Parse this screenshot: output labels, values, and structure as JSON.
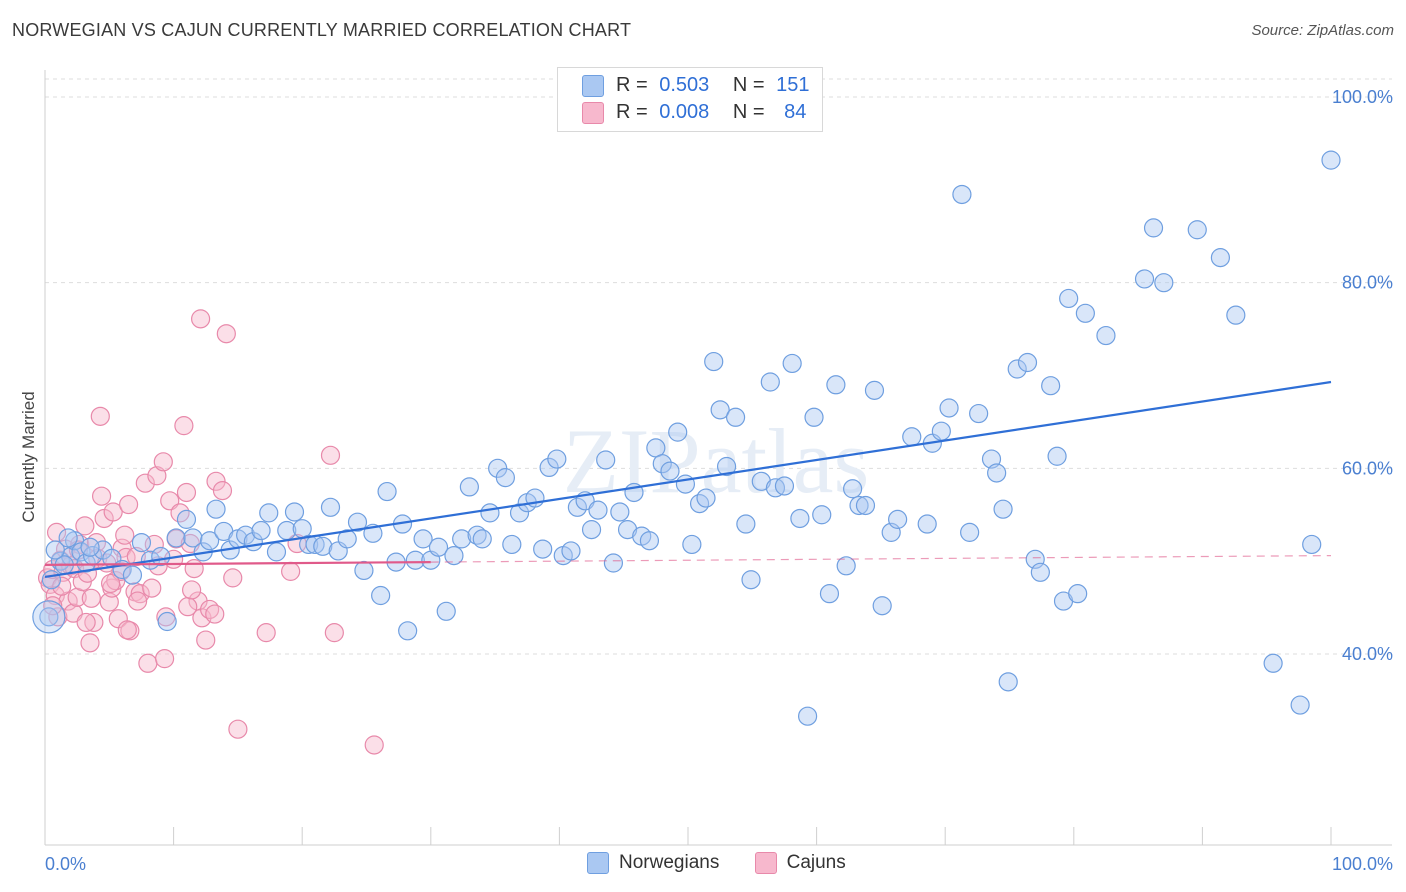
{
  "title": "NORWEGIAN VS CAJUN CURRENTLY MARRIED CORRELATION CHART",
  "source": "Source: ZipAtlas.com",
  "watermark": "ZIPatlas",
  "colors": {
    "norwegians_fill": "#aac8f2",
    "norwegians_stroke": "#6f9fe0",
    "norwegians_line": "#2f6fd6",
    "cajuns_fill": "#f7b8cd",
    "cajuns_stroke": "#e889aa",
    "cajuns_line": "#e05a8a",
    "tick_label": "#4a7fd0"
  },
  "legend": {
    "rows": [
      {
        "r_label": "R =",
        "r_value": "0.503",
        "n_label": "N =",
        "n_value": "151",
        "color": "#aac8f2"
      },
      {
        "r_label": "R =",
        "r_value": "0.008",
        "n_label": "N =",
        "n_value": "84",
        "color": "#f7b8cd"
      }
    ]
  },
  "bottom_legend": [
    {
      "label": "Norwegians",
      "color": "#aac8f2"
    },
    {
      "label": "Cajuns",
      "color": "#f7b8cd"
    }
  ],
  "chart_data": {
    "type": "scatter",
    "title": "NORWEGIAN VS CAJUN CURRENTLY MARRIED CORRELATION CHART",
    "xlabel": "",
    "ylabel": "Currently Married",
    "xlim": [
      0,
      100
    ],
    "ylim": [
      22,
      102
    ],
    "x_tick_labels": [
      "0.0%",
      "100.0%"
    ],
    "y_ticks": [
      40,
      60,
      80,
      100
    ],
    "y_tick_labels": [
      "40.0%",
      "60.0%",
      "80.0%",
      "100.0%"
    ],
    "grid": "horizontal dashed",
    "legend_position": "top-center",
    "series": [
      {
        "name": "Norwegians",
        "r": 0.503,
        "n": 151,
        "trend": {
          "x": [
            0,
            100
          ],
          "y": [
            48.3,
            69.3
          ]
        },
        "points": [
          [
            1.2,
            50
          ],
          [
            2,
            50.5
          ],
          [
            2.3,
            52.2
          ],
          [
            2.8,
            51
          ],
          [
            3.2,
            49.8
          ],
          [
            3.7,
            50.6
          ],
          [
            4.5,
            51.2
          ],
          [
            5.2,
            50.3
          ],
          [
            6,
            49.1
          ],
          [
            6.8,
            48.5
          ],
          [
            7.5,
            52
          ],
          [
            8.2,
            50.1
          ],
          [
            9,
            50.5
          ],
          [
            9.5,
            43.5
          ],
          [
            10.2,
            52.5
          ],
          [
            11,
            54.5
          ],
          [
            11.5,
            52.5
          ],
          [
            12.3,
            51
          ],
          [
            12.8,
            52.2
          ],
          [
            13.3,
            55.6
          ],
          [
            13.9,
            53.2
          ],
          [
            14.4,
            51.2
          ],
          [
            15,
            52.4
          ],
          [
            15.6,
            52.8
          ],
          [
            16.2,
            52.1
          ],
          [
            16.8,
            53.3
          ],
          [
            17.4,
            55.2
          ],
          [
            18,
            51
          ],
          [
            18.8,
            53.3
          ],
          [
            19.4,
            55.3
          ],
          [
            20,
            53.5
          ],
          [
            20.5,
            51.8
          ],
          [
            21,
            51.8
          ],
          [
            21.6,
            51.6
          ],
          [
            22.2,
            55.8
          ],
          [
            22.8,
            51.1
          ],
          [
            23.5,
            52.4
          ],
          [
            24.3,
            54.2
          ],
          [
            24.8,
            49
          ],
          [
            25.5,
            53
          ],
          [
            26.1,
            46.3
          ],
          [
            26.6,
            57.5
          ],
          [
            27.3,
            49.9
          ],
          [
            27.8,
            54
          ],
          [
            28.2,
            42.5
          ],
          [
            28.8,
            50.1
          ],
          [
            29.4,
            52.4
          ],
          [
            30,
            50.1
          ],
          [
            30.6,
            51.5
          ],
          [
            31.2,
            44.6
          ],
          [
            31.8,
            50.6
          ],
          [
            32.4,
            52.4
          ],
          [
            33,
            58
          ],
          [
            33.6,
            52.8
          ],
          [
            34,
            52.4
          ],
          [
            34.6,
            55.2
          ],
          [
            35.2,
            60
          ],
          [
            35.8,
            59
          ],
          [
            36.3,
            51.8
          ],
          [
            36.9,
            55.2
          ],
          [
            37.5,
            56.3
          ],
          [
            38.1,
            56.8
          ],
          [
            38.7,
            51.3
          ],
          [
            39.2,
            60.1
          ],
          [
            39.8,
            61
          ],
          [
            40.3,
            50.6
          ],
          [
            40.9,
            51.1
          ],
          [
            41.4,
            55.8
          ],
          [
            42,
            56.5
          ],
          [
            42.5,
            53.4
          ],
          [
            43,
            55.5
          ],
          [
            43.6,
            60.9
          ],
          [
            44.2,
            49.8
          ],
          [
            44.7,
            55.3
          ],
          [
            45.3,
            53.4
          ],
          [
            45.8,
            57.4
          ],
          [
            46.4,
            52.7
          ],
          [
            47,
            52.2
          ],
          [
            47.5,
            62.2
          ],
          [
            48,
            60.5
          ],
          [
            48.6,
            59.7
          ],
          [
            49.2,
            63.9
          ],
          [
            49.8,
            58.3
          ],
          [
            50.3,
            51.8
          ],
          [
            50.9,
            56.2
          ],
          [
            51.4,
            56.8
          ],
          [
            52,
            71.5
          ],
          [
            52.5,
            66.3
          ],
          [
            53,
            60.2
          ],
          [
            53.7,
            65.5
          ],
          [
            54.5,
            54
          ],
          [
            54.9,
            48
          ],
          [
            55.7,
            58.6
          ],
          [
            56.4,
            69.3
          ],
          [
            56.8,
            57.9
          ],
          [
            57.5,
            58.1
          ],
          [
            58.1,
            71.3
          ],
          [
            58.7,
            54.6
          ],
          [
            59.3,
            33.3
          ],
          [
            59.8,
            65.5
          ],
          [
            60.4,
            55
          ],
          [
            61,
            46.5
          ],
          [
            61.5,
            69
          ],
          [
            62.3,
            49.5
          ],
          [
            62.8,
            57.8
          ],
          [
            63.3,
            56
          ],
          [
            63.8,
            56
          ],
          [
            64.5,
            68.4
          ],
          [
            65.1,
            45.2
          ],
          [
            65.8,
            53.1
          ],
          [
            66.3,
            54.5
          ],
          [
            67.4,
            63.4
          ],
          [
            68.6,
            54
          ],
          [
            69,
            62.7
          ],
          [
            69.7,
            64
          ],
          [
            70.3,
            66.5
          ],
          [
            71.3,
            89.5
          ],
          [
            71.9,
            53.1
          ],
          [
            72.6,
            65.9
          ],
          [
            73.6,
            61
          ],
          [
            74,
            59.5
          ],
          [
            74.5,
            55.6
          ],
          [
            74.9,
            37
          ],
          [
            75.6,
            70.7
          ],
          [
            76.4,
            71.4
          ],
          [
            77,
            50.2
          ],
          [
            77.4,
            48.8
          ],
          [
            78.2,
            68.9
          ],
          [
            78.7,
            61.3
          ],
          [
            79.2,
            45.7
          ],
          [
            79.6,
            78.3
          ],
          [
            80.3,
            46.5
          ],
          [
            80.9,
            76.7
          ],
          [
            82.5,
            74.3
          ],
          [
            85.5,
            80.4
          ],
          [
            86.2,
            85.9
          ],
          [
            87,
            80
          ],
          [
            89.6,
            85.7
          ],
          [
            91.4,
            82.7
          ],
          [
            92.6,
            76.5
          ],
          [
            95.5,
            39
          ],
          [
            97.6,
            34.5
          ],
          [
            98.5,
            51.8
          ],
          [
            100,
            93.2
          ],
          [
            0.3,
            44
          ],
          [
            0.5,
            48
          ],
          [
            1.5,
            49.6
          ],
          [
            0.8,
            51.2
          ],
          [
            1.8,
            52.5
          ],
          [
            3.5,
            51.5
          ]
        ]
      },
      {
        "name": "Cajuns",
        "r": 0.008,
        "n": 84,
        "trend": {
          "x": [
            0,
            30
          ],
          "y": [
            49.6,
            49.9
          ]
        },
        "trend_extended": {
          "x": [
            30,
            100
          ],
          "y": [
            49.9,
            50.6
          ]
        },
        "points": [
          [
            0.2,
            48.2
          ],
          [
            0.4,
            47.5
          ],
          [
            0.6,
            49.1
          ],
          [
            0.8,
            46.3
          ],
          [
            1,
            44
          ],
          [
            1.2,
            50.1
          ],
          [
            1.4,
            48.8
          ],
          [
            1.6,
            51.3
          ],
          [
            1.8,
            45.7
          ],
          [
            2,
            49.5
          ],
          [
            2.2,
            44.4
          ],
          [
            2.3,
            49.2
          ],
          [
            2.5,
            46.1
          ],
          [
            2.7,
            51.8
          ],
          [
            2.9,
            47.8
          ],
          [
            3.1,
            53.8
          ],
          [
            3.3,
            48.7
          ],
          [
            3.5,
            41.2
          ],
          [
            3.6,
            46
          ],
          [
            3.8,
            43.4
          ],
          [
            4,
            52
          ],
          [
            4.1,
            50.3
          ],
          [
            4.3,
            65.6
          ],
          [
            4.4,
            57
          ],
          [
            4.6,
            54.6
          ],
          [
            4.8,
            49.8
          ],
          [
            5,
            45.6
          ],
          [
            5.2,
            47.1
          ],
          [
            5.3,
            55.3
          ],
          [
            5.5,
            47.9
          ],
          [
            5.7,
            43.8
          ],
          [
            5.9,
            48.9
          ],
          [
            6,
            51.4
          ],
          [
            6.2,
            52.8
          ],
          [
            6.3,
            50.4
          ],
          [
            6.5,
            56.1
          ],
          [
            6.6,
            42.5
          ],
          [
            7,
            46.7
          ],
          [
            7.1,
            50.5
          ],
          [
            7.4,
            46.5
          ],
          [
            7.8,
            58.4
          ],
          [
            8,
            39
          ],
          [
            8.3,
            47.1
          ],
          [
            8.5,
            51.8
          ],
          [
            8.7,
            59.2
          ],
          [
            8.8,
            49.5
          ],
          [
            9.2,
            60.7
          ],
          [
            9.4,
            44
          ],
          [
            9.7,
            56.5
          ],
          [
            10,
            50.2
          ],
          [
            10.2,
            52.4
          ],
          [
            10.5,
            55.2
          ],
          [
            11,
            57.4
          ],
          [
            11.3,
            51.9
          ],
          [
            11.6,
            49.2
          ],
          [
            11.9,
            45.7
          ],
          [
            12.2,
            43.9
          ],
          [
            12.5,
            41.5
          ],
          [
            12.8,
            44.8
          ],
          [
            13.3,
            58.6
          ],
          [
            13.8,
            57.6
          ],
          [
            14.1,
            74.5
          ],
          [
            14.6,
            48.2
          ],
          [
            15,
            31.9
          ],
          [
            12.1,
            76.1
          ],
          [
            17.2,
            42.3
          ],
          [
            19.1,
            48.9
          ],
          [
            19.6,
            51.9
          ],
          [
            22.2,
            61.4
          ],
          [
            22.5,
            42.3
          ],
          [
            25.6,
            30.2
          ],
          [
            6.4,
            42.6
          ],
          [
            7.2,
            45.7
          ],
          [
            9.3,
            39.5
          ],
          [
            10.8,
            64.6
          ],
          [
            11.1,
            45.1
          ],
          [
            13.2,
            44.3
          ],
          [
            11.4,
            46.9
          ],
          [
            0.9,
            53.1
          ],
          [
            3.2,
            43.4
          ],
          [
            5.1,
            47.6
          ],
          [
            2.6,
            51.2
          ],
          [
            1.3,
            47.3
          ],
          [
            0.6,
            45.2
          ]
        ]
      }
    ]
  }
}
